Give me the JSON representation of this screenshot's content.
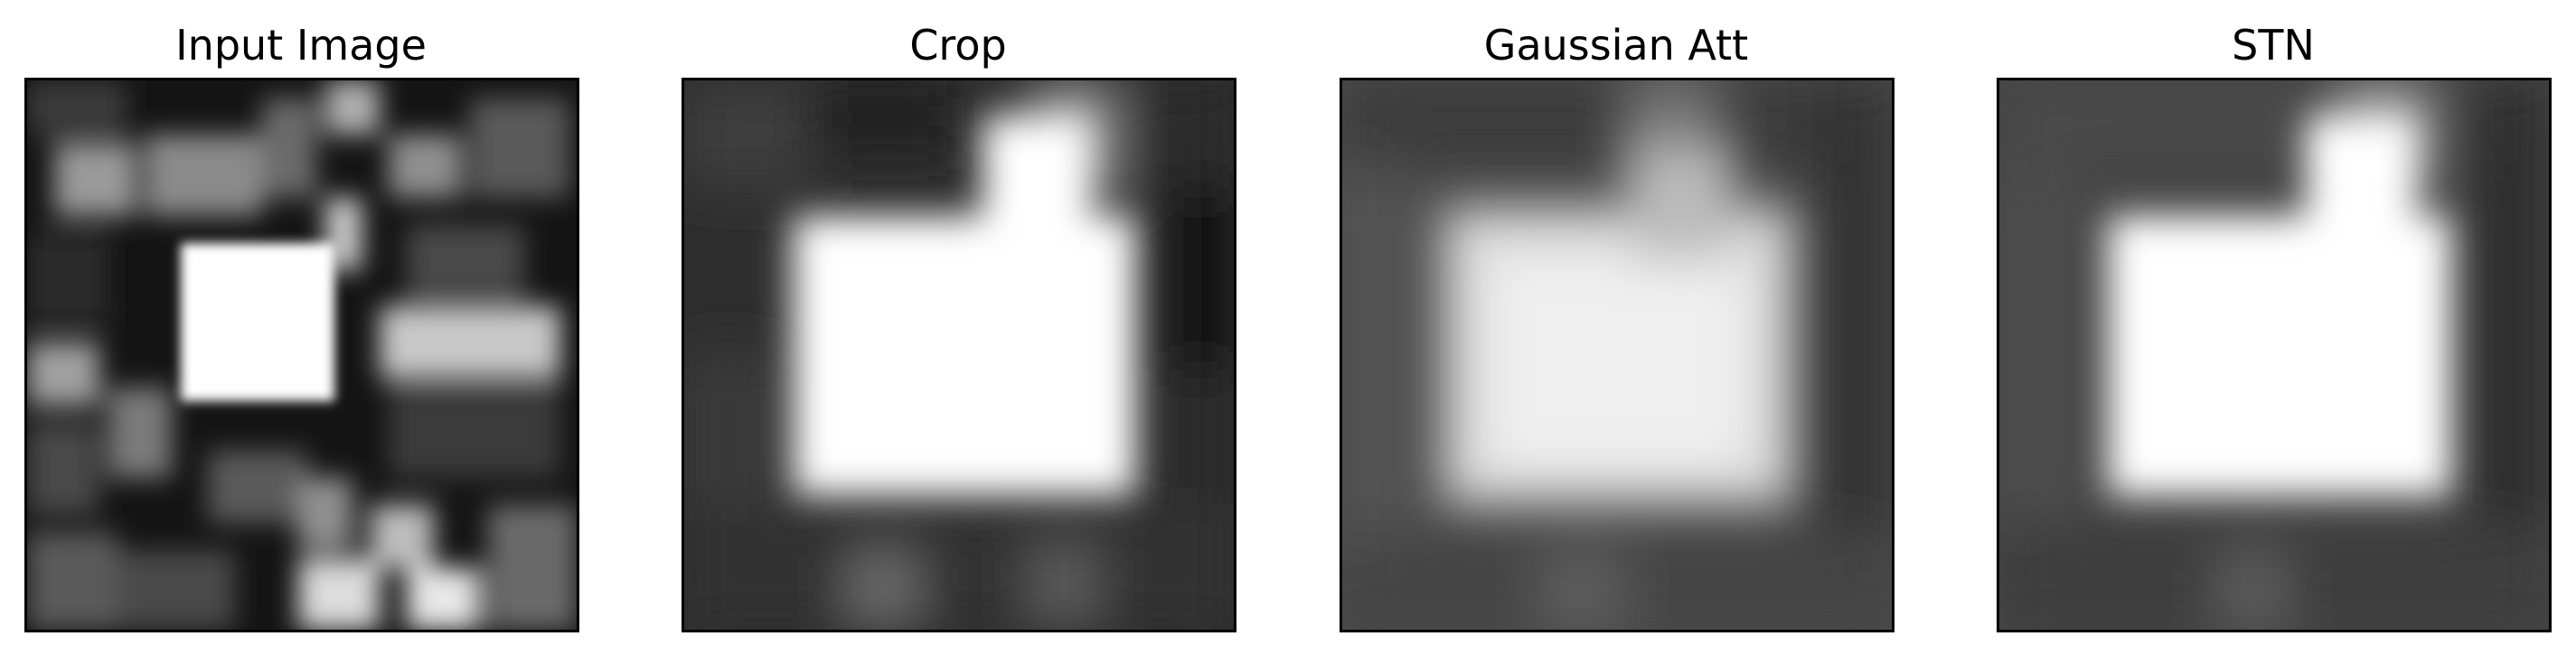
{
  "panels": [
    {
      "title": "Input Image"
    },
    {
      "title": "Crop"
    },
    {
      "title": "Gaussian Att"
    },
    {
      "title": "STN"
    }
  ]
}
